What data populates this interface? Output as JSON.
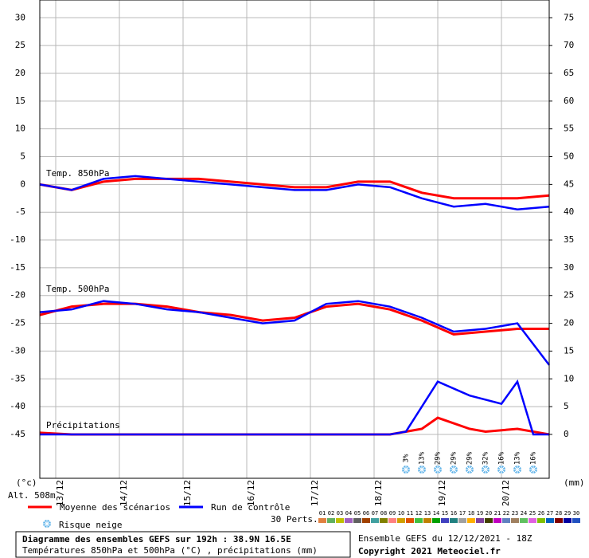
{
  "chart_data": {
    "type": "line",
    "labels": {
      "t850": "Temp. 850hPa",
      "t500": "Temp. 500hPa",
      "precip": "Précipitations",
      "left_unit": "(°c)",
      "right_unit": "(mm)",
      "altitude": "Alt. 508m"
    },
    "xlim": [
      0,
      192
    ],
    "xticks": [
      {
        "value": 6,
        "label": "13/12"
      },
      {
        "value": 30,
        "label": "14/12"
      },
      {
        "value": 54,
        "label": "15/12"
      },
      {
        "value": 78,
        "label": "16/12"
      },
      {
        "value": 102,
        "label": "17/12"
      },
      {
        "value": 126,
        "label": "18/12"
      },
      {
        "value": 150,
        "label": "19/12"
      },
      {
        "value": 174,
        "label": "20/12"
      }
    ],
    "ylim": [
      -52.9,
      33.2
    ],
    "yticks": [
      -45,
      -40,
      -35,
      -30,
      -25,
      -20,
      -15,
      -10,
      -5,
      0,
      5,
      10,
      15,
      20,
      25,
      30
    ],
    "y2lim": [
      -7.9,
      78.2
    ],
    "y2ticks": [
      0,
      5,
      10,
      15,
      20,
      25,
      30,
      35,
      40,
      45,
      50,
      55,
      60,
      65,
      70,
      75
    ],
    "grid": true,
    "series": [
      {
        "name": "Moyenne des scénarios",
        "color": "#ff0000",
        "x": [
          0,
          12,
          24,
          36,
          48,
          60,
          72,
          84,
          96,
          108,
          120,
          132,
          144,
          156,
          168,
          180,
          192
        ],
        "values": [
          0,
          -1,
          0.5,
          1,
          1,
          1,
          0.5,
          0,
          -0.5,
          -0.5,
          0.5,
          0.5,
          -1.5,
          -2.5,
          -2.5,
          -2.5,
          -2
        ]
      },
      {
        "name": "Run de contrôle",
        "color": "#0000ff",
        "x": [
          0,
          12,
          24,
          36,
          48,
          60,
          72,
          84,
          96,
          108,
          120,
          132,
          144,
          156,
          168,
          180,
          192
        ],
        "values": [
          0,
          -1,
          1,
          1.5,
          1,
          0.5,
          0,
          -0.5,
          -1,
          -1,
          0,
          -0.5,
          -2.5,
          -4,
          -3.5,
          -4.5,
          -4
        ]
      },
      {
        "name": "Moyenne des scénarios",
        "color": "#ff0000",
        "x": [
          0,
          12,
          24,
          36,
          48,
          60,
          72,
          84,
          96,
          108,
          120,
          132,
          144,
          156,
          168,
          180,
          192
        ],
        "values": [
          -23.5,
          -22,
          -21.5,
          -21.5,
          -22,
          -23,
          -23.5,
          -24.5,
          -24,
          -22,
          -21.5,
          -22.5,
          -24.5,
          -27,
          -26.5,
          -26,
          -26
        ]
      },
      {
        "name": "Run de contrôle",
        "color": "#0000ff",
        "x": [
          0,
          12,
          24,
          36,
          48,
          60,
          72,
          84,
          96,
          108,
          120,
          132,
          144,
          156,
          168,
          180,
          192
        ],
        "values": [
          -23,
          -22.5,
          -21,
          -21.5,
          -22.5,
          -23,
          -24,
          -25,
          -24.5,
          -21.5,
          -21,
          -22,
          -24,
          -26.5,
          -26,
          -25,
          -32.5
        ]
      },
      {
        "name": "Moyenne des scénarios",
        "color": "#ff0000",
        "axis": "y2",
        "x": [
          0,
          12,
          132,
          144,
          150,
          162,
          168,
          180,
          192
        ],
        "values": [
          0.3,
          0,
          0,
          1,
          3,
          1,
          0.5,
          1,
          0
        ]
      },
      {
        "name": "Run de contrôle",
        "color": "#0000ff",
        "axis": "y2",
        "x": [
          0,
          132,
          138,
          150,
          162,
          174,
          180,
          186,
          192
        ],
        "values": [
          0,
          0,
          0.5,
          9.5,
          7,
          5.5,
          9.5,
          0,
          0
        ]
      }
    ],
    "snow_risk": {
      "name": "Risque neige",
      "x": [
        138,
        144,
        150,
        156,
        162,
        168,
        174,
        180,
        186
      ],
      "labels": [
        "3%",
        "13%",
        "29%",
        "29%",
        "29%",
        "32%",
        "16%",
        "13%",
        "16%"
      ]
    },
    "perturbations": {
      "title": "30 Perts.",
      "names": [
        "01",
        "02",
        "03",
        "04",
        "05",
        "06",
        "07",
        "08",
        "09",
        "10",
        "11",
        "12",
        "13",
        "14",
        "15",
        "16",
        "17",
        "18",
        "19",
        "20",
        "21",
        "22",
        "23",
        "24",
        "25",
        "26",
        "27",
        "28",
        "29",
        "30"
      ],
      "colors": [
        "#e08040",
        "#60b060",
        "#c0c000",
        "#a060c0",
        "#606060",
        "#a04000",
        "#40a0a0",
        "#808000",
        "#ff8080",
        "#d0a000",
        "#e05000",
        "#40c040",
        "#c08000",
        "#00a000",
        "#4040c0",
        "#208080",
        "#a0a0a0",
        "#ffb000",
        "#8040a0",
        "#404000",
        "#c000c0",
        "#6080c0",
        "#a08060",
        "#60c060",
        "#e060e0",
        "#80c000",
        "#0060c0",
        "#800000",
        "#0000a0",
        "#2050c0"
      ]
    },
    "footer": {
      "title": "Diagramme des ensembles GEFS sur 192h : 38.9N 16.5E",
      "subtitle": "Températures 850hPa et 500hPa (°C) , précipitations (mm)",
      "run": "Ensemble GEFS du 12/12/2021 - 18Z",
      "copyright": "Copyright 2021 Meteociel.fr"
    }
  }
}
